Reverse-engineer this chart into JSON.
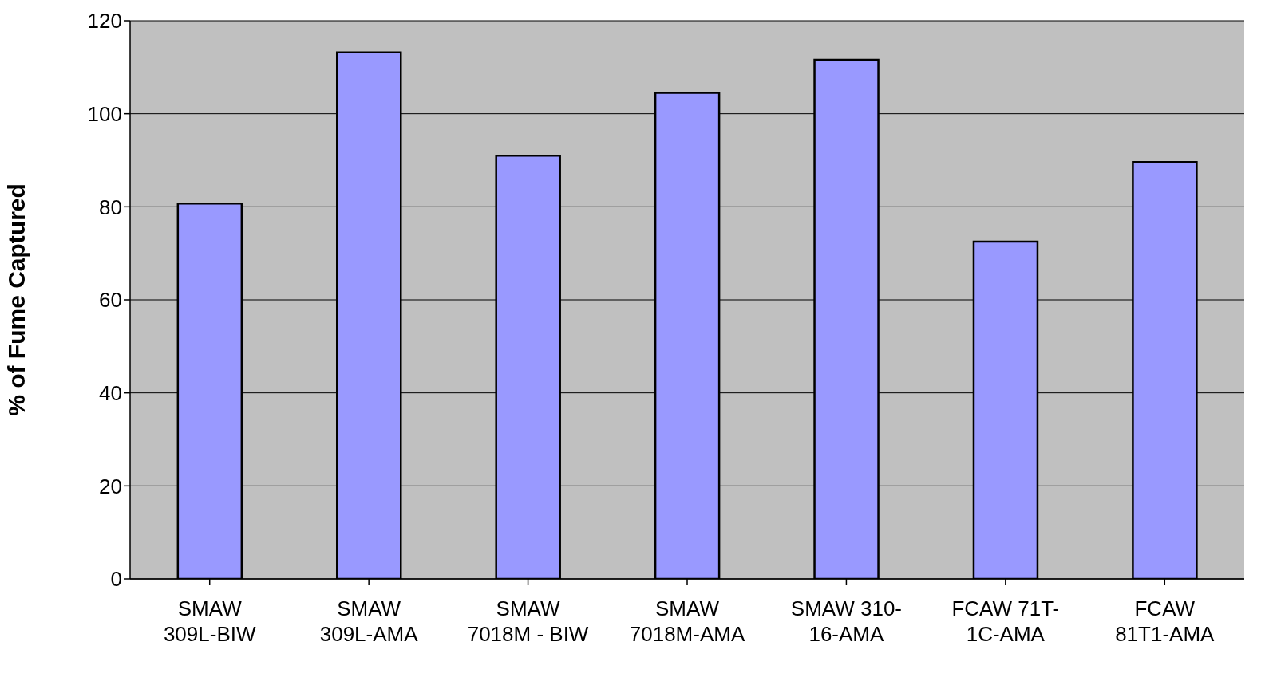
{
  "chart_data": {
    "type": "bar",
    "ylabel": "% of Fume Captured",
    "categories": [
      "SMAW 309L-BIW",
      "SMAW 309L-AMA",
      "SMAW 7018M - BIW",
      "SMAW 7018M-AMA",
      "SMAW 310-16-AMA",
      "FCAW 71T-1C-AMA",
      "FCAW 81T1-AMA"
    ],
    "values": [
      80.7,
      113.2,
      91.0,
      104.5,
      111.6,
      72.5,
      89.6
    ],
    "color": "#9999ff",
    "ylim": [
      0,
      120
    ],
    "yticks": [
      0,
      20,
      40,
      60,
      80,
      100,
      120
    ],
    "grid": "y",
    "legend": false
  }
}
